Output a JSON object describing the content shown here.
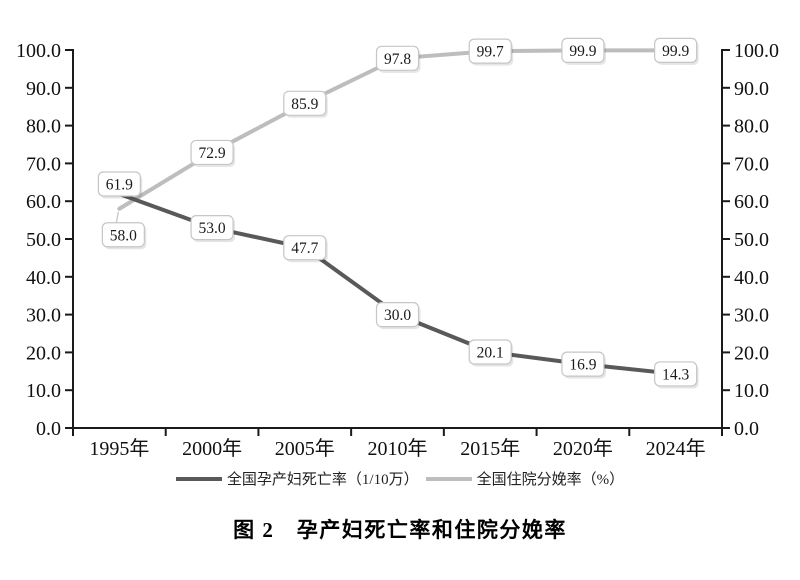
{
  "figure": {
    "caption": "图 2　孕产妇死亡率和住院分娩率"
  },
  "chart_data": {
    "type": "line",
    "title": "图 2　孕产妇死亡率和住院分娩率",
    "categories": [
      "1995年",
      "2000年",
      "2005年",
      "2010年",
      "2015年",
      "2020年",
      "2024年"
    ],
    "series": [
      {
        "name": "全国孕产妇死亡率（1/10万）",
        "color": "#595959",
        "values": [
          61.9,
          53.0,
          47.7,
          30.0,
          20.1,
          16.9,
          14.3
        ],
        "point_labels": [
          "61.9",
          "53.0",
          "47.7",
          "30.0",
          "20.1",
          "16.9",
          "14.3"
        ]
      },
      {
        "name": "全国住院分娩率（%）",
        "color": "#bdbdbd",
        "values": [
          58.0,
          72.9,
          85.9,
          97.8,
          99.7,
          99.9,
          99.9
        ],
        "point_labels": [
          "58.0",
          "72.9",
          "85.9",
          "97.8",
          "99.7",
          "99.9",
          "99.9"
        ]
      }
    ],
    "y_axis": {
      "min": 0,
      "max": 100,
      "step": 10,
      "left_tick_labels": [
        "0.0",
        "10.0",
        "20.0",
        "30.0",
        "40.0",
        "50.0",
        "60.0",
        "70.0",
        "80.0",
        "90.0",
        "100.0"
      ],
      "right_tick_labels": [
        "0.0",
        "10.0",
        "20.0",
        "30.0",
        "40.0",
        "50.0",
        "60.0",
        "70.0",
        "80.0",
        "90.0",
        "100.0"
      ]
    },
    "ylim": [
      0,
      100
    ],
    "grid": false,
    "legend_position": "bottom",
    "axis_color": "#1a1a1a",
    "label_box": {
      "fill": "#ffffff",
      "border": "#c6c6c6"
    }
  }
}
